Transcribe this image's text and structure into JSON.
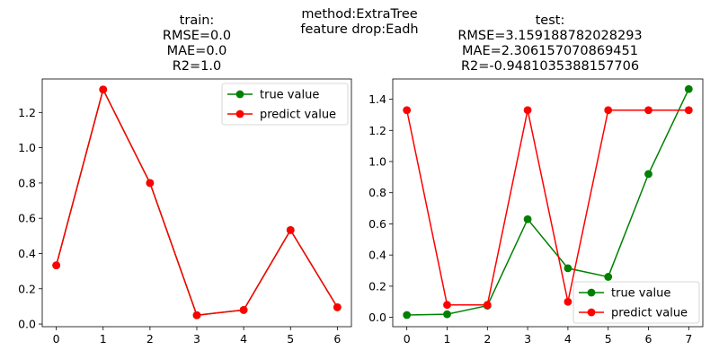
{
  "suptitle": [
    "method:ExtraTree",
    "feature drop:Eadh"
  ],
  "colors": {
    "true_value": "#008000",
    "predict_value": "#ff0000"
  },
  "chart_data": [
    {
      "type": "line",
      "title": [
        "train:",
        "RMSE=0.0",
        "MAE=0.0",
        "R2=1.0"
      ],
      "x": [
        0,
        1,
        2,
        3,
        4,
        5,
        6
      ],
      "xticks": [
        "0",
        "1",
        "2",
        "3",
        "4",
        "5",
        "6"
      ],
      "yticks": [
        "0.0",
        "0.2",
        "0.4",
        "0.6",
        "0.8",
        "1.0",
        "1.2"
      ],
      "xlim": [
        -0.3,
        6.3
      ],
      "ylim": [
        -0.015,
        1.39
      ],
      "legend_loc": "upper right",
      "series": [
        {
          "name": "true value",
          "values": [
            0.333,
            1.33,
            0.8,
            0.05,
            0.08,
            0.533,
            0.095
          ]
        },
        {
          "name": "predict value",
          "values": [
            0.333,
            1.33,
            0.8,
            0.05,
            0.08,
            0.533,
            0.095
          ]
        }
      ]
    },
    {
      "type": "line",
      "title": [
        "test:",
        "RMSE=3.159188782028293",
        "MAE=2.306157070869451",
        "R2=-0.9481035388157706"
      ],
      "x": [
        0,
        1,
        2,
        3,
        4,
        5,
        6,
        7
      ],
      "xticks": [
        "0",
        "1",
        "2",
        "3",
        "4",
        "5",
        "6",
        "7"
      ],
      "yticks": [
        "0.0",
        "0.2",
        "0.4",
        "0.6",
        "0.8",
        "1.0",
        "1.2",
        "1.4"
      ],
      "xlim": [
        -0.35,
        7.35
      ],
      "ylim": [
        -0.06,
        1.53
      ],
      "legend_loc": "lower right",
      "series": [
        {
          "name": "true value",
          "values": [
            0.015,
            0.02,
            0.075,
            0.63,
            0.315,
            0.26,
            0.92,
            1.465
          ]
        },
        {
          "name": "predict value",
          "values": [
            1.33,
            0.08,
            0.08,
            1.33,
            0.1,
            1.33,
            1.33,
            1.33
          ]
        }
      ]
    }
  ]
}
